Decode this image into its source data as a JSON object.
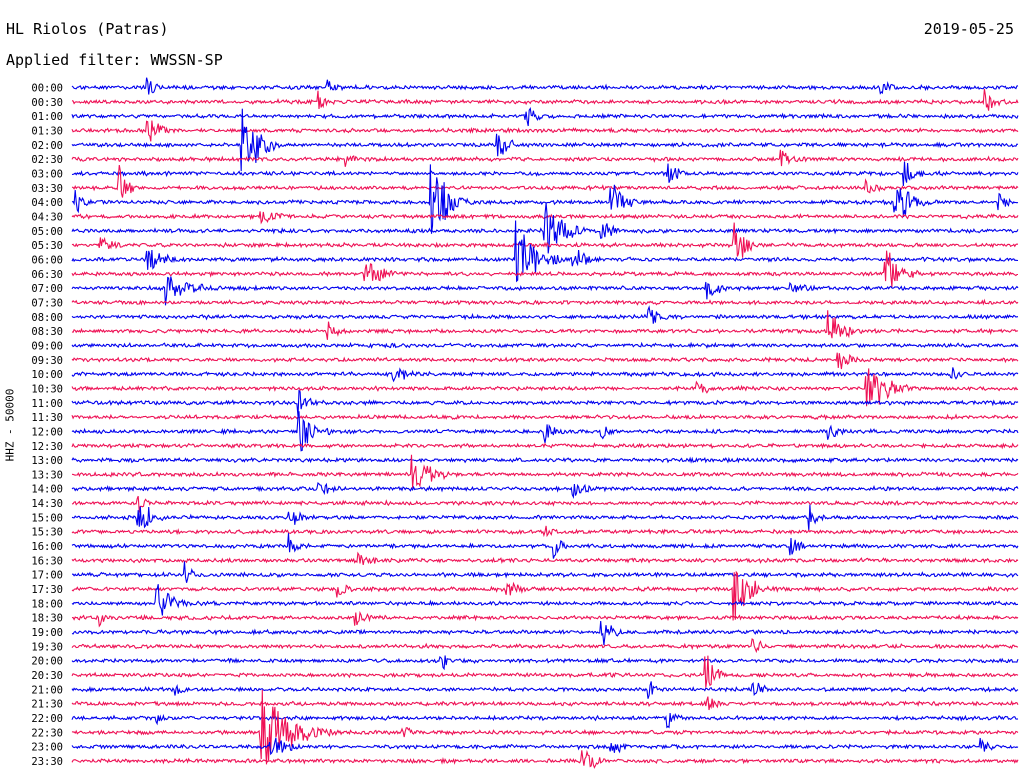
{
  "header": {
    "station": "HL Riolos (Patras)",
    "filter": "Applied filter: WWSSN-SP",
    "date": "2019-05-25"
  },
  "chart_data": {
    "type": "line",
    "title": "HL Riolos (Patras)",
    "subtitle": "Applied filter: WWSSN-SP",
    "date": "2019-05-25",
    "ylabel": "HHZ - 50000",
    "xlabel": "",
    "row_labels": [
      "00:00",
      "00:30",
      "01:00",
      "01:30",
      "02:00",
      "02:30",
      "03:00",
      "03:30",
      "04:00",
      "04:30",
      "05:00",
      "05:30",
      "06:00",
      "06:30",
      "07:00",
      "07:30",
      "08:00",
      "08:30",
      "09:00",
      "09:30",
      "10:00",
      "10:30",
      "11:00",
      "11:30",
      "12:00",
      "12:30",
      "13:00",
      "13:30",
      "14:00",
      "14:30",
      "15:00",
      "15:30",
      "16:00",
      "16:30",
      "17:00",
      "17:30",
      "18:00",
      "18:30",
      "19:00",
      "19:30",
      "20:00",
      "20:30",
      "21:00",
      "21:30",
      "22:00",
      "22:30",
      "23:00",
      "23:30"
    ],
    "series_colors": [
      "#0000ee",
      "#ee1155"
    ],
    "events": [
      {
        "row": 0,
        "t": 0.08,
        "amp": 1.2,
        "dur": 0.02
      },
      {
        "row": 0,
        "t": 0.27,
        "amp": 0.9,
        "dur": 0.03
      },
      {
        "row": 0,
        "t": 0.855,
        "amp": 0.8,
        "dur": 0.03
      },
      {
        "row": 1,
        "t": 0.26,
        "amp": 1.0,
        "dur": 0.02
      },
      {
        "row": 1,
        "t": 0.965,
        "amp": 1.1,
        "dur": 0.04
      },
      {
        "row": 2,
        "t": 0.48,
        "amp": 1.2,
        "dur": 0.03
      },
      {
        "row": 3,
        "t": 0.08,
        "amp": 2.0,
        "dur": 0.03
      },
      {
        "row": 4,
        "t": 0.18,
        "amp": 4.5,
        "dur": 0.04
      },
      {
        "row": 4,
        "t": 0.45,
        "amp": 1.6,
        "dur": 0.03
      },
      {
        "row": 5,
        "t": 0.29,
        "amp": 0.8,
        "dur": 0.02
      },
      {
        "row": 5,
        "t": 0.75,
        "amp": 0.9,
        "dur": 0.03
      },
      {
        "row": 6,
        "t": 0.63,
        "amp": 1.2,
        "dur": 0.03
      },
      {
        "row": 6,
        "t": 0.88,
        "amp": 1.5,
        "dur": 0.03
      },
      {
        "row": 7,
        "t": 0.05,
        "amp": 2.5,
        "dur": 0.02
      },
      {
        "row": 7,
        "t": 0.84,
        "amp": 1.0,
        "dur": 0.03
      },
      {
        "row": 8,
        "t": 0.005,
        "amp": 1.2,
        "dur": 0.02
      },
      {
        "row": 8,
        "t": 0.38,
        "amp": 4.5,
        "dur": 0.04
      },
      {
        "row": 8,
        "t": 0.57,
        "amp": 2.0,
        "dur": 0.04
      },
      {
        "row": 8,
        "t": 0.87,
        "amp": 2.5,
        "dur": 0.04
      },
      {
        "row": 8,
        "t": 0.98,
        "amp": 1.2,
        "dur": 0.02
      },
      {
        "row": 9,
        "t": 0.2,
        "amp": 0.8,
        "dur": 0.06
      },
      {
        "row": 10,
        "t": 0.5,
        "amp": 3.0,
        "dur": 0.05
      },
      {
        "row": 10,
        "t": 0.56,
        "amp": 1.2,
        "dur": 0.03
      },
      {
        "row": 11,
        "t": 0.03,
        "amp": 0.9,
        "dur": 0.04
      },
      {
        "row": 11,
        "t": 0.7,
        "amp": 2.5,
        "dur": 0.03
      },
      {
        "row": 12,
        "t": 0.08,
        "amp": 1.2,
        "dur": 0.05
      },
      {
        "row": 12,
        "t": 0.47,
        "amp": 4.0,
        "dur": 0.05
      },
      {
        "row": 12,
        "t": 0.53,
        "amp": 1.8,
        "dur": 0.03
      },
      {
        "row": 13,
        "t": 0.31,
        "amp": 1.6,
        "dur": 0.05
      },
      {
        "row": 13,
        "t": 0.86,
        "amp": 3.0,
        "dur": 0.04
      },
      {
        "row": 14,
        "t": 0.1,
        "amp": 1.5,
        "dur": 0.08
      },
      {
        "row": 14,
        "t": 0.67,
        "amp": 1.2,
        "dur": 0.04
      },
      {
        "row": 14,
        "t": 0.76,
        "amp": 1.0,
        "dur": 0.04
      },
      {
        "row": 16,
        "t": 0.61,
        "amp": 1.2,
        "dur": 0.03
      },
      {
        "row": 17,
        "t": 0.27,
        "amp": 1.0,
        "dur": 0.03
      },
      {
        "row": 17,
        "t": 0.8,
        "amp": 2.2,
        "dur": 0.04
      },
      {
        "row": 19,
        "t": 0.81,
        "amp": 1.5,
        "dur": 0.03
      },
      {
        "row": 20,
        "t": 0.34,
        "amp": 0.9,
        "dur": 0.05
      },
      {
        "row": 20,
        "t": 0.93,
        "amp": 0.9,
        "dur": 0.02
      },
      {
        "row": 21,
        "t": 0.66,
        "amp": 0.8,
        "dur": 0.04
      },
      {
        "row": 21,
        "t": 0.84,
        "amp": 3.2,
        "dur": 0.05
      },
      {
        "row": 22,
        "t": 0.24,
        "amp": 1.5,
        "dur": 0.03
      },
      {
        "row": 24,
        "t": 0.24,
        "amp": 2.5,
        "dur": 0.04
      },
      {
        "row": 24,
        "t": 0.5,
        "amp": 1.2,
        "dur": 0.03
      },
      {
        "row": 24,
        "t": 0.56,
        "amp": 1.0,
        "dur": 0.02
      },
      {
        "row": 24,
        "t": 0.8,
        "amp": 0.9,
        "dur": 0.03
      },
      {
        "row": 27,
        "t": 0.36,
        "amp": 2.5,
        "dur": 0.05
      },
      {
        "row": 28,
        "t": 0.26,
        "amp": 0.9,
        "dur": 0.04
      },
      {
        "row": 28,
        "t": 0.53,
        "amp": 0.8,
        "dur": 0.04
      },
      {
        "row": 29,
        "t": 0.07,
        "amp": 1.0,
        "dur": 0.02
      },
      {
        "row": 30,
        "t": 0.07,
        "amp": 2.5,
        "dur": 0.03
      },
      {
        "row": 30,
        "t": 0.23,
        "amp": 1.0,
        "dur": 0.04
      },
      {
        "row": 30,
        "t": 0.78,
        "amp": 1.2,
        "dur": 0.02
      },
      {
        "row": 31,
        "t": 0.5,
        "amp": 0.8,
        "dur": 0.02
      },
      {
        "row": 32,
        "t": 0.23,
        "amp": 1.0,
        "dur": 0.02
      },
      {
        "row": 32,
        "t": 0.51,
        "amp": 1.2,
        "dur": 0.02
      },
      {
        "row": 32,
        "t": 0.76,
        "amp": 1.0,
        "dur": 0.03
      },
      {
        "row": 33,
        "t": 0.3,
        "amp": 1.2,
        "dur": 0.04
      },
      {
        "row": 34,
        "t": 0.12,
        "amp": 1.2,
        "dur": 0.02
      },
      {
        "row": 35,
        "t": 0.28,
        "amp": 1.0,
        "dur": 0.03
      },
      {
        "row": 35,
        "t": 0.46,
        "amp": 1.2,
        "dur": 0.03
      },
      {
        "row": 35,
        "t": 0.7,
        "amp": 3.5,
        "dur": 0.04
      },
      {
        "row": 36,
        "t": 0.09,
        "amp": 2.0,
        "dur": 0.04
      },
      {
        "row": 37,
        "t": 0.03,
        "amp": 0.8,
        "dur": 0.02
      },
      {
        "row": 37,
        "t": 0.3,
        "amp": 0.9,
        "dur": 0.03
      },
      {
        "row": 38,
        "t": 0.56,
        "amp": 1.6,
        "dur": 0.03
      },
      {
        "row": 39,
        "t": 0.72,
        "amp": 1.2,
        "dur": 0.02
      },
      {
        "row": 40,
        "t": 0.39,
        "amp": 1.2,
        "dur": 0.02
      },
      {
        "row": 41,
        "t": 0.67,
        "amp": 3.0,
        "dur": 0.02
      },
      {
        "row": 42,
        "t": 0.11,
        "amp": 0.8,
        "dur": 0.02
      },
      {
        "row": 42,
        "t": 0.61,
        "amp": 1.2,
        "dur": 0.02
      },
      {
        "row": 42,
        "t": 0.72,
        "amp": 1.0,
        "dur": 0.03
      },
      {
        "row": 43,
        "t": 0.67,
        "amp": 1.5,
        "dur": 0.02
      },
      {
        "row": 44,
        "t": 0.09,
        "amp": 0.8,
        "dur": 0.02
      },
      {
        "row": 44,
        "t": 0.63,
        "amp": 1.2,
        "dur": 0.02
      },
      {
        "row": 45,
        "t": 0.2,
        "amp": 4.0,
        "dur": 0.08
      },
      {
        "row": 45,
        "t": 0.35,
        "amp": 0.8,
        "dur": 0.02
      },
      {
        "row": 46,
        "t": 0.21,
        "amp": 1.2,
        "dur": 0.05
      },
      {
        "row": 46,
        "t": 0.57,
        "amp": 1.0,
        "dur": 0.03
      },
      {
        "row": 46,
        "t": 0.96,
        "amp": 0.8,
        "dur": 0.03
      },
      {
        "row": 47,
        "t": 0.54,
        "amp": 1.6,
        "dur": 0.04
      }
    ]
  }
}
